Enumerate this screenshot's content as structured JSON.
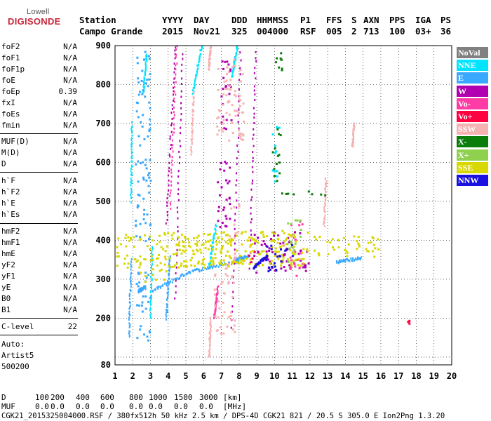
{
  "logo": {
    "top": "Lowell",
    "main": "DIGISONDE"
  },
  "header": {
    "labels": {
      "station": "Station",
      "yyyy": "YYYY",
      "day": "DAY",
      "ddd": "DDD",
      "hhmmss": "HHMMSS",
      "p1": "P1",
      "ffs": "FFS",
      "s": "S",
      "axn": "AXN",
      "pps": "PPS",
      "iga": "IGA",
      "ps": "PS"
    },
    "values": {
      "station": "Campo Grande",
      "yyyy": "2015",
      "day": "Nov21",
      "ddd": "325",
      "hhmmss": "004000",
      "p1": "RSF",
      "ffs": "005",
      "s": "2",
      "axn": "713",
      "pps": "100",
      "iga": "03+",
      "ps": "36"
    }
  },
  "params": {
    "group1": [
      {
        "name": "foF2",
        "value": "N/A"
      },
      {
        "name": "foF1",
        "value": "N/A"
      },
      {
        "name": "foF1p",
        "value": "N/A"
      },
      {
        "name": "foE",
        "value": "N/A"
      },
      {
        "name": "foEp",
        "value": "0.39"
      },
      {
        "name": "fxI",
        "value": "N/A"
      },
      {
        "name": "foEs",
        "value": "N/A"
      },
      {
        "name": "fmin",
        "value": "N/A"
      }
    ],
    "group2": [
      {
        "name": "MUF(D)",
        "value": "N/A"
      },
      {
        "name": "M(D)",
        "value": "N/A"
      },
      {
        "name": "D",
        "value": "N/A"
      }
    ],
    "group3": [
      {
        "name": "h`F",
        "value": "N/A"
      },
      {
        "name": "h`F2",
        "value": "N/A"
      },
      {
        "name": "h`E",
        "value": "N/A"
      },
      {
        "name": "h`Es",
        "value": "N/A"
      }
    ],
    "group4": [
      {
        "name": "hmF2",
        "value": "N/A"
      },
      {
        "name": "hmF1",
        "value": "N/A"
      },
      {
        "name": "hmE",
        "value": "N/A"
      },
      {
        "name": "yF2",
        "value": "N/A"
      },
      {
        "name": "yF1",
        "value": "N/A"
      },
      {
        "name": "yE",
        "value": "N/A"
      },
      {
        "name": "B0",
        "value": "N/A"
      },
      {
        "name": "B1",
        "value": "N/A"
      }
    ],
    "clevel": {
      "name": "C-level",
      "value": "22"
    }
  },
  "auto": {
    "line1": "Auto:",
    "line2": "Artist5",
    "line3": "500200"
  },
  "legend": [
    {
      "label": "NoVal",
      "color": "#808080"
    },
    {
      "label": "NNE",
      "color": "#00e5ff"
    },
    {
      "label": "E",
      "color": "#39a8ff"
    },
    {
      "label": "W",
      "color": "#b000b0"
    },
    {
      "label": "Vo-",
      "color": "#ff3ca6"
    },
    {
      "label": "Vo+",
      "color": "#ff0040"
    },
    {
      "label": "SSW",
      "color": "#f6b2b2"
    },
    {
      "label": "X-",
      "color": "#0b7d0b"
    },
    {
      "label": "X+",
      "color": "#8fd14f"
    },
    {
      "label": "SSE",
      "color": "#d8d800"
    },
    {
      "label": "NNW",
      "color": "#1a10e0"
    }
  ],
  "bottom": {
    "d_label": "D",
    "d_values": [
      "100",
      "200",
      "400",
      "600",
      "800",
      "1000",
      "1500",
      "3000",
      "[km]"
    ],
    "muf_label": "MUF",
    "muf_values": [
      "0.0",
      "0.0",
      "0.0",
      "0.0",
      "0.0",
      "0.0",
      "0.0",
      "0.0",
      "[MHz]"
    ],
    "footer": "CGK21_2015325004000.RSF / 380fx512h 50 kHz 2.5 km / DPS-4D CGK21 821 / 20.5 S 305.0 E Ion2Png 1.3.20"
  },
  "chart_data": {
    "type": "scatter",
    "title": "",
    "xlabel": "",
    "ylabel": "",
    "xlim": [
      1,
      20
    ],
    "ylim": [
      80,
      900
    ],
    "xticks": [
      1,
      2,
      3,
      4,
      5,
      6,
      7,
      8,
      9,
      10,
      11,
      12,
      13,
      14,
      15,
      16,
      17,
      18,
      19,
      20
    ],
    "yticks": [
      100,
      200,
      300,
      400,
      500,
      600,
      700,
      800,
      900
    ],
    "ytick_labels": [
      "",
      "200",
      "300",
      "400",
      "500",
      "600",
      "700",
      "800",
      "900"
    ],
    "y_bottom_label": "80",
    "grid": true,
    "series": [
      {
        "name": "NNE",
        "color": "#00e5ff",
        "segments": [
          [
            [
              1.9,
              500
            ],
            [
              1.95,
              700
            ]
          ],
          [
            [
              2.6,
              780
            ],
            [
              2.8,
              880
            ]
          ],
          [
            [
              3.0,
              200
            ],
            [
              3.1,
              380
            ]
          ],
          [
            [
              5.4,
              780
            ],
            [
              5.9,
              900
            ]
          ],
          [
            [
              6.3,
              330
            ],
            [
              6.7,
              440
            ]
          ],
          [
            [
              7.6,
              820
            ],
            [
              7.9,
              900
            ]
          ]
        ],
        "clusters": [
          [
            10.1,
            620,
            6,
            40
          ]
        ]
      },
      {
        "name": "E",
        "color": "#39a8ff",
        "segments": [
          [
            [
              2.3,
              270
            ],
            [
              2.7,
              280
            ]
          ],
          [
            [
              3.1,
              270
            ],
            [
              5.2,
              320
            ]
          ],
          [
            [
              5.2,
              320
            ],
            [
              7.8,
              345
            ]
          ],
          [
            [
              7.8,
              350
            ],
            [
              8.5,
              360
            ]
          ],
          [
            [
              1.8,
              150
            ],
            [
              1.9,
              350
            ]
          ],
          [
            [
              3.9,
              200
            ],
            [
              4.1,
              360
            ]
          ],
          [
            [
              13.5,
              345
            ],
            [
              14.9,
              355
            ]
          ]
        ],
        "clusters": [
          [
            2.6,
            760,
            10,
            70
          ],
          [
            2.6,
            500,
            12,
            60
          ],
          [
            2.6,
            230,
            10,
            50
          ]
        ]
      },
      {
        "name": "W",
        "color": "#b000b0",
        "segments": [
          [
            [
              3.9,
              440
            ],
            [
              4.4,
              900
            ]
          ],
          [
            [
              4.4,
              250
            ],
            [
              4.8,
              880
            ]
          ],
          [
            [
              7.6,
              180
            ],
            [
              8.1,
              900
            ]
          ],
          [
            [
              8.6,
              330
            ],
            [
              8.95,
              900
            ]
          ]
        ],
        "clusters": [
          [
            7.3,
            770,
            8,
            50
          ],
          [
            7.1,
            515,
            10,
            50
          ],
          [
            10.4,
            370,
            40,
            30
          ]
        ]
      },
      {
        "name": "Vo-",
        "color": "#ff3ca6",
        "segments": [
          [
            [
              4.1,
              480
            ],
            [
              4.5,
              900
            ]
          ],
          [
            [
              6.6,
              200
            ],
            [
              6.8,
              280
            ]
          ]
        ],
        "clusters": [
          [
            11.2,
            380,
            10,
            40
          ]
        ]
      },
      {
        "name": "Vo+",
        "color": "#ff0040",
        "segments": [],
        "clusters": [
          [
            17.6,
            190,
            2,
            2
          ],
          [
            8.8,
            360,
            6,
            10
          ]
        ]
      },
      {
        "name": "SSW",
        "color": "#f6b2b2",
        "segments": [
          [
            [
              5.3,
              620
            ],
            [
              5.45,
              780
            ]
          ],
          [
            [
              6.3,
              840
            ],
            [
              6.4,
              900
            ]
          ],
          [
            [
              12.8,
              440
            ],
            [
              12.9,
              560
            ]
          ],
          [
            [
              14.4,
              640
            ],
            [
              14.5,
              700
            ]
          ],
          [
            [
              6.3,
              100
            ],
            [
              6.4,
              200
            ]
          ]
        ],
        "clusters": [
          [
            7.5,
            760,
            20,
            60
          ],
          [
            7.2,
            260,
            15,
            60
          ],
          [
            7.7,
            450,
            8,
            30
          ]
        ]
      },
      {
        "name": "X-",
        "color": "#0b7d0b",
        "segments": [],
        "clusters": [
          [
            10.1,
            620,
            6,
            40
          ],
          [
            10.3,
            880,
            8,
            25
          ],
          [
            10.9,
            520,
            20,
            4
          ],
          [
            12.5,
            520,
            15,
            4
          ]
        ]
      },
      {
        "name": "X+",
        "color": "#8fd14f",
        "segments": [],
        "clusters": [
          [
            11.1,
            380,
            10,
            40
          ]
        ]
      },
      {
        "name": "SSE",
        "color": "#d8d800",
        "segments": [],
        "clusters": [
          [
            3.7,
            375,
            80,
            25
          ],
          [
            6.5,
            375,
            60,
            25
          ],
          [
            9.0,
            380,
            60,
            25
          ],
          [
            10.9,
            380,
            25,
            25
          ],
          [
            14.0,
            385,
            50,
            15
          ],
          [
            3.1,
            310,
            20,
            10
          ]
        ]
      },
      {
        "name": "NNW",
        "color": "#1a10e0",
        "segments": [
          [
            [
              8.8,
              330
            ],
            [
              9.6,
              360
            ]
          ]
        ],
        "clusters": [
          [
            10.3,
            355,
            20,
            20
          ]
        ]
      }
    ]
  }
}
